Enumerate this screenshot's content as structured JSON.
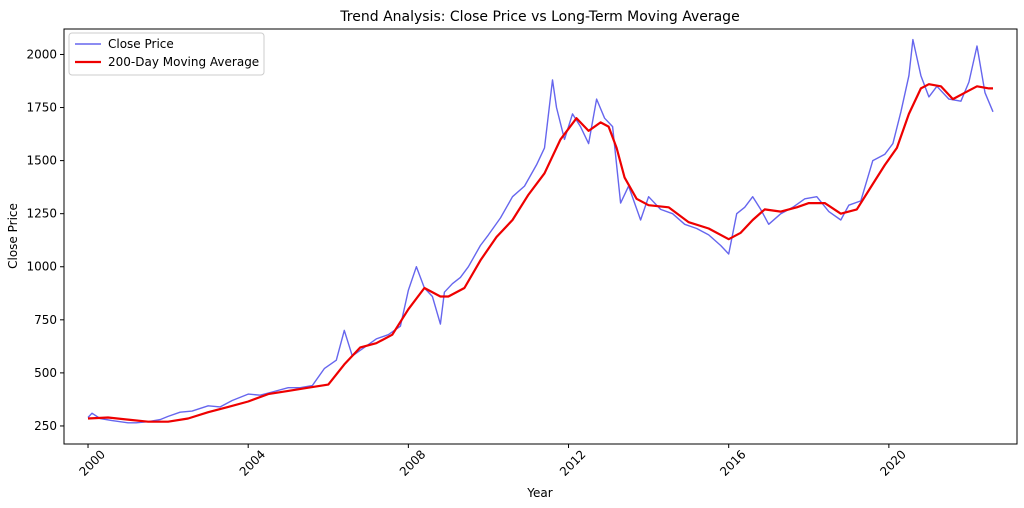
{
  "chart_data": {
    "type": "line",
    "title": "Trend Analysis: Close Price vs Long-Term Moving Average",
    "xlabel": "Year",
    "ylabel": "Close Price",
    "xlim": [
      1999.4,
      2023.2
    ],
    "ylim": [
      165,
      2120
    ],
    "x_ticks": [
      2000,
      2004,
      2008,
      2012,
      2016,
      2020
    ],
    "x_tick_labels": [
      "2000",
      "2004",
      "2008",
      "2012",
      "2016",
      "2020"
    ],
    "y_ticks": [
      250,
      500,
      750,
      1000,
      1250,
      1500,
      1750,
      2000
    ],
    "y_tick_labels": [
      "250",
      "500",
      "750",
      "1000",
      "1250",
      "1500",
      "1750",
      "2000"
    ],
    "legend_position": "top-left",
    "series": [
      {
        "name": "Close Price",
        "color": "#6666ee",
        "x": [
          2000.0,
          2000.1,
          2000.3,
          2000.6,
          2001.0,
          2001.2,
          2001.5,
          2001.8,
          2002.0,
          2002.3,
          2002.6,
          2003.0,
          2003.3,
          2003.6,
          2004.0,
          2004.3,
          2004.6,
          2005.0,
          2005.3,
          2005.6,
          2005.9,
          2006.2,
          2006.4,
          2006.6,
          2006.9,
          2007.2,
          2007.5,
          2007.8,
          2008.0,
          2008.2,
          2008.4,
          2008.6,
          2008.8,
          2008.9,
          2009.1,
          2009.3,
          2009.5,
          2009.8,
          2010.0,
          2010.3,
          2010.6,
          2010.9,
          2011.2,
          2011.4,
          2011.6,
          2011.7,
          2011.9,
          2012.1,
          2012.3,
          2012.5,
          2012.7,
          2012.9,
          2013.1,
          2013.3,
          2013.5,
          2013.8,
          2014.0,
          2014.3,
          2014.6,
          2014.9,
          2015.2,
          2015.5,
          2015.8,
          2016.0,
          2016.2,
          2016.4,
          2016.6,
          2016.8,
          2017.0,
          2017.3,
          2017.6,
          2017.9,
          2018.2,
          2018.5,
          2018.8,
          2019.0,
          2019.3,
          2019.6,
          2019.9,
          2020.1,
          2020.3,
          2020.5,
          2020.6,
          2020.8,
          2021.0,
          2021.2,
          2021.5,
          2021.8,
          2022.0,
          2022.2,
          2022.4,
          2022.6
        ],
        "values": [
          290,
          310,
          285,
          275,
          265,
          265,
          270,
          280,
          295,
          315,
          320,
          345,
          340,
          370,
          400,
          395,
          410,
          430,
          430,
          440,
          520,
          560,
          700,
          580,
          620,
          660,
          680,
          720,
          890,
          1000,
          900,
          860,
          730,
          880,
          920,
          950,
          1000,
          1100,
          1150,
          1230,
          1330,
          1380,
          1480,
          1560,
          1880,
          1750,
          1600,
          1720,
          1660,
          1580,
          1790,
          1700,
          1660,
          1300,
          1380,
          1220,
          1330,
          1270,
          1250,
          1200,
          1180,
          1150,
          1100,
          1060,
          1250,
          1280,
          1330,
          1270,
          1200,
          1250,
          1280,
          1320,
          1330,
          1260,
          1220,
          1290,
          1310,
          1500,
          1530,
          1580,
          1730,
          1900,
          2070,
          1900,
          1800,
          1850,
          1790,
          1780,
          1870,
          2040,
          1820,
          1730
        ]
      },
      {
        "name": "200-Day Moving Average",
        "color": "#ee0000",
        "x": [
          2000.0,
          2000.5,
          2001.0,
          2001.5,
          2002.0,
          2002.5,
          2003.0,
          2003.5,
          2004.0,
          2004.5,
          2005.0,
          2005.5,
          2006.0,
          2006.4,
          2006.8,
          2007.2,
          2007.6,
          2008.0,
          2008.4,
          2008.8,
          2009.0,
          2009.4,
          2009.8,
          2010.2,
          2010.6,
          2011.0,
          2011.4,
          2011.8,
          2012.0,
          2012.2,
          2012.5,
          2012.8,
          2013.0,
          2013.2,
          2013.4,
          2013.7,
          2014.0,
          2014.5,
          2015.0,
          2015.5,
          2016.0,
          2016.3,
          2016.6,
          2016.9,
          2017.3,
          2017.7,
          2018.0,
          2018.4,
          2018.8,
          2019.2,
          2019.6,
          2019.9,
          2020.2,
          2020.5,
          2020.8,
          2021.0,
          2021.3,
          2021.6,
          2021.9,
          2022.2,
          2022.5,
          2022.6
        ],
        "values": [
          285,
          290,
          280,
          270,
          270,
          285,
          315,
          340,
          365,
          400,
          415,
          430,
          445,
          540,
          620,
          640,
          680,
          800,
          900,
          860,
          860,
          900,
          1030,
          1140,
          1220,
          1340,
          1440,
          1600,
          1650,
          1700,
          1640,
          1680,
          1660,
          1560,
          1420,
          1320,
          1290,
          1280,
          1210,
          1180,
          1130,
          1160,
          1220,
          1270,
          1260,
          1280,
          1300,
          1300,
          1250,
          1270,
          1390,
          1480,
          1560,
          1720,
          1840,
          1860,
          1850,
          1790,
          1820,
          1850,
          1840,
          1840
        ]
      }
    ]
  }
}
